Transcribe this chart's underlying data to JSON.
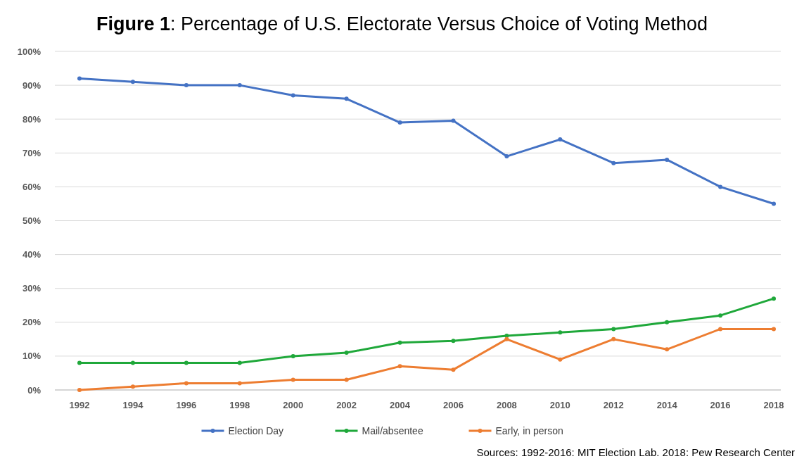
{
  "chart_data": {
    "type": "line",
    "title": "Figure 1: Percentage of U.S. Electorate Versus Choice of Voting Method",
    "categories": [
      "1992",
      "1994",
      "1996",
      "1998",
      "2000",
      "2002",
      "2004",
      "2006",
      "2008",
      "2010",
      "2012",
      "2014",
      "2016",
      "2018"
    ],
    "series": [
      {
        "name": "Election Day",
        "color": "#4472c4",
        "values": [
          92,
          91,
          90,
          90,
          87,
          86,
          79,
          79.5,
          69,
          74,
          67,
          68,
          60,
          55
        ]
      },
      {
        "name": "Mail/absentee",
        "color": "#1fa83a",
        "values": [
          8,
          8,
          8,
          8,
          10,
          11,
          14,
          14.5,
          16,
          17,
          18,
          20,
          22,
          27
        ]
      },
      {
        "name": "Early, in person",
        "color": "#ed7d31",
        "values": [
          0,
          1,
          2,
          2,
          3,
          3,
          7,
          6,
          15,
          9,
          15,
          12,
          18,
          18
        ]
      }
    ],
    "ylim": [
      0,
      100
    ],
    "yticks": [
      {
        "value": 0,
        "label": "0%"
      },
      {
        "value": 10,
        "label": "10%"
      },
      {
        "value": 20,
        "label": "20%"
      },
      {
        "value": 30,
        "label": "30%"
      },
      {
        "value": 40,
        "label": "40%"
      },
      {
        "value": 50,
        "label": "50%"
      },
      {
        "value": 60,
        "label": "60%"
      },
      {
        "value": 70,
        "label": "70%"
      },
      {
        "value": 80,
        "label": "80%"
      },
      {
        "value": 90,
        "label": "90%"
      },
      {
        "value": 100,
        "label": "100%"
      }
    ],
    "grid": "y",
    "legend": "bottom",
    "marker": "circle",
    "line_style": "solid",
    "annotations": [
      "Sources: 1992-2016: MIT Election Lab.  2018: Pew Research Center"
    ]
  }
}
